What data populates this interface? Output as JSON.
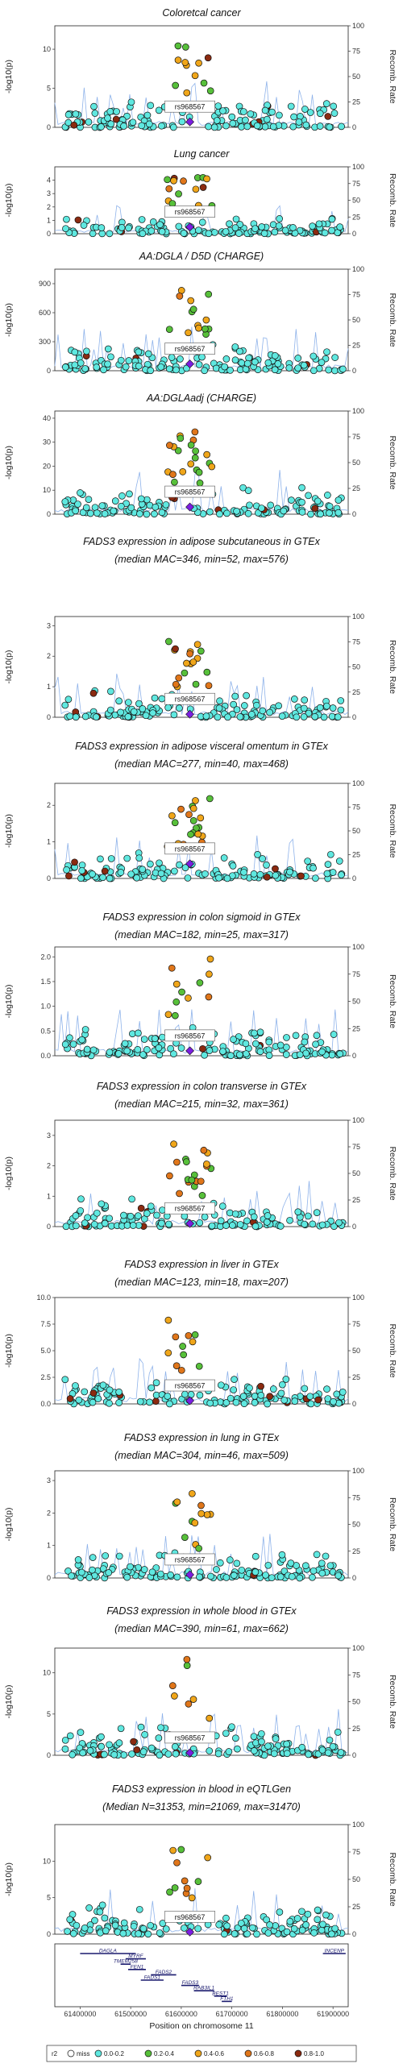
{
  "figure": {
    "leadSnp": "rs968567",
    "yAxisLabel": "-log10(p)",
    "y2AxisLabel": "Recomb. Rate",
    "y2Ticks": [
      0,
      25,
      50,
      75,
      100
    ],
    "xAxis": {
      "label": "Position on chromosome 11",
      "ticks": [
        61400000,
        61500000,
        61600000,
        61700000,
        61800000,
        61900000
      ],
      "tickLabels": [
        "61400000",
        "61500000",
        "61600000",
        "61700000",
        "61800000",
        "61900000"
      ],
      "range": [
        61350000,
        61930000
      ]
    },
    "legend": {
      "title": "r2",
      "entries": [
        {
          "label": "miss",
          "color": "#ffffff"
        },
        {
          "label": "0.0-0.2",
          "color": "#5fe8e0"
        },
        {
          "label": "0.2-0.4",
          "color": "#57c03a"
        },
        {
          "label": "0.4-0.6",
          "color": "#f0a61a"
        },
        {
          "label": "0.6-0.8",
          "color": "#e0761a"
        },
        {
          "label": "0.8-1.0",
          "color": "#8b2a10"
        }
      ],
      "leadColor": "#7b1ee0"
    }
  },
  "chart_data": [
    {
      "type": "scatter",
      "title": [
        "Coloretcal cancer"
      ],
      "ylim": [
        0,
        13
      ],
      "yticks": [
        0,
        5,
        10
      ],
      "peak": 11,
      "leadY": 0.7,
      "series": [
        {
          "name": "0.0-0.2"
        },
        {
          "name": "0.2-0.4"
        },
        {
          "name": "0.4-0.6"
        },
        {
          "name": "0.6-0.8"
        },
        {
          "name": "0.8-1.0"
        }
      ]
    },
    {
      "type": "scatter",
      "title": [
        "Lung cancer"
      ],
      "ylim": [
        0,
        5
      ],
      "yticks": [
        0,
        1,
        2,
        3,
        4
      ],
      "peak": 4.3,
      "leadY": 0.5,
      "series": [
        {
          "name": "0.0-0.2"
        },
        {
          "name": "0.2-0.4"
        },
        {
          "name": "0.4-0.6"
        },
        {
          "name": "0.6-0.8"
        },
        {
          "name": "0.8-1.0"
        }
      ]
    },
    {
      "type": "scatter",
      "title": [
        "AA:DGLA / D5D (CHARGE)"
      ],
      "ylim": [
        0,
        1050
      ],
      "yticks": [
        0,
        300,
        600,
        900
      ],
      "peak": 920,
      "leadY": 70,
      "series": [
        {
          "name": "0.0-0.2"
        },
        {
          "name": "0.2-0.4"
        },
        {
          "name": "0.4-0.6"
        },
        {
          "name": "0.6-0.8"
        },
        {
          "name": "0.8-1.0"
        }
      ]
    },
    {
      "type": "scatter",
      "title": [
        "AA:DGLAadj (CHARGE)"
      ],
      "ylim": [
        0,
        43
      ],
      "yticks": [
        0,
        10,
        20,
        30,
        40
      ],
      "peak": 35,
      "leadY": 3,
      "series": [
        {
          "name": "0.0-0.2"
        },
        {
          "name": "0.2-0.4"
        },
        {
          "name": "0.4-0.6"
        },
        {
          "name": "0.6-0.8"
        },
        {
          "name": "0.8-1.0"
        }
      ]
    },
    {
      "type": "scatter",
      "title": [
        "FADS3 expression in adipose subcutaneous in GTEx",
        "(median MAC=346, min=52, max=576)"
      ],
      "ylim": [
        0,
        3.3
      ],
      "yticks": [
        0,
        1,
        2,
        3
      ],
      "peak": 2.5,
      "leadY": 0.1,
      "series": [
        {
          "name": "0.0-0.2"
        },
        {
          "name": "0.2-0.4"
        },
        {
          "name": "0.4-0.6"
        },
        {
          "name": "0.6-0.8"
        },
        {
          "name": "0.8-1.0"
        }
      ]
    },
    {
      "type": "scatter",
      "title": [
        "FADS3 expression in adipose visceral omentum in GTEx",
        "(median MAC=277, min=40, max=468)"
      ],
      "ylim": [
        0,
        2.6
      ],
      "yticks": [
        0,
        1,
        2
      ],
      "peak": 2.2,
      "leadY": 0.4,
      "series": [
        {
          "name": "0.0-0.2"
        },
        {
          "name": "0.2-0.4"
        },
        {
          "name": "0.4-0.6"
        },
        {
          "name": "0.6-0.8"
        },
        {
          "name": "0.8-1.0"
        }
      ]
    },
    {
      "type": "scatter",
      "title": [
        "FADS3 expression in colon sigmoid in GTEx",
        "(median MAC=182, min=25, max=317)"
      ],
      "ylim": [
        0,
        2.2
      ],
      "yticks": [
        0,
        0.5,
        1,
        1.5,
        2
      ],
      "ytickLabels": [
        "0.0",
        "0.5",
        "1.0",
        "1.5",
        "2.0"
      ],
      "peak": 2.0,
      "leadY": 0.1,
      "series": [
        {
          "name": "0.0-0.2"
        },
        {
          "name": "0.2-0.4"
        },
        {
          "name": "0.4-0.6"
        },
        {
          "name": "0.6-0.8"
        },
        {
          "name": "0.8-1.0"
        }
      ]
    },
    {
      "type": "scatter",
      "title": [
        "FADS3 expression in colon transverse in GTEx",
        "(median MAC=215, min=32, max=361)"
      ],
      "ylim": [
        0,
        3.5
      ],
      "yticks": [
        0,
        1,
        2,
        3
      ],
      "peak": 2.8,
      "leadY": 0.1,
      "series": [
        {
          "name": "0.0-0.2"
        },
        {
          "name": "0.2-0.4"
        },
        {
          "name": "0.4-0.6"
        },
        {
          "name": "0.6-0.8"
        },
        {
          "name": "0.8-1.0"
        }
      ]
    },
    {
      "type": "scatter",
      "title": [
        "FADS3 expression in liver in GTEx",
        "(median MAC=123, min=18, max=207)"
      ],
      "ylim": [
        0,
        10
      ],
      "yticks": [
        0,
        2.5,
        5,
        7.5,
        10
      ],
      "ytickLabels": [
        "0.0",
        "2.5",
        "5.0",
        "7.5",
        "10.0"
      ],
      "peak": 8.0,
      "leadY": 0.3,
      "series": [
        {
          "name": "0.0-0.2"
        },
        {
          "name": "0.2-0.4"
        },
        {
          "name": "0.4-0.6"
        },
        {
          "name": "0.6-0.8"
        },
        {
          "name": "0.8-1.0"
        }
      ]
    },
    {
      "type": "scatter",
      "title": [
        "FADS3 expression in lung in GTEx",
        "(median MAC=304, min=46, max=509)"
      ],
      "ylim": [
        0,
        3.3
      ],
      "yticks": [
        0,
        1,
        2,
        3
      ],
      "peak": 2.6,
      "leadY": 0.1,
      "series": [
        {
          "name": "0.0-0.2"
        },
        {
          "name": "0.2-0.4"
        },
        {
          "name": "0.4-0.6"
        },
        {
          "name": "0.6-0.8"
        },
        {
          "name": "0.8-1.0"
        }
      ]
    },
    {
      "type": "scatter",
      "title": [
        "FADS3 expression in whole blood in GTEx",
        "(median MAC=390, min=61, max=662)"
      ],
      "ylim": [
        0,
        13
      ],
      "yticks": [
        0,
        5,
        10
      ],
      "peak": 12,
      "leadY": 0.3,
      "series": [
        {
          "name": "0.0-0.2"
        },
        {
          "name": "0.2-0.4"
        },
        {
          "name": "0.4-0.6"
        },
        {
          "name": "0.6-0.8"
        },
        {
          "name": "0.8-1.0"
        }
      ]
    },
    {
      "type": "scatter",
      "title": [
        "FADS3 expression in blood in eQTLGen",
        "(Median N=31353, min=21069, max=31470)"
      ],
      "ylim": [
        0,
        15
      ],
      "yticks": [
        0,
        5,
        10
      ],
      "peak": 12,
      "leadY": 0.3,
      "series": [
        {
          "name": "0.0-0.2"
        },
        {
          "name": "0.2-0.4"
        },
        {
          "name": "0.4-0.6"
        },
        {
          "name": "0.6-0.8"
        },
        {
          "name": "0.8-1.0"
        }
      ]
    }
  ],
  "genes": [
    {
      "name": "DAGLA",
      "start": 61400000,
      "end": 61510000,
      "row": 0
    },
    {
      "name": "INCENP",
      "start": 61880000,
      "end": 61925000,
      "row": 0
    },
    {
      "name": "MYRF",
      "start": 61490000,
      "end": 61530000,
      "row": 1
    },
    {
      "name": "TMEM258",
      "start": 61480000,
      "end": 61500000,
      "row": 2
    },
    {
      "name": "FEN1",
      "start": 61495000,
      "end": 61530000,
      "row": 3
    },
    {
      "name": "FADS2",
      "start": 61540000,
      "end": 61590000,
      "row": 4
    },
    {
      "name": "FADS1",
      "start": 61520000,
      "end": 61565000,
      "row": 5
    },
    {
      "name": "FADS3",
      "start": 61600000,
      "end": 61635000,
      "row": 6
    },
    {
      "name": "RAB3IL1",
      "start": 61625000,
      "end": 61665000,
      "row": 7
    },
    {
      "name": "BEST1",
      "start": 61665000,
      "end": 61690000,
      "row": 8
    },
    {
      "name": "FTH1",
      "start": 61680000,
      "end": 61700000,
      "row": 9
    }
  ]
}
